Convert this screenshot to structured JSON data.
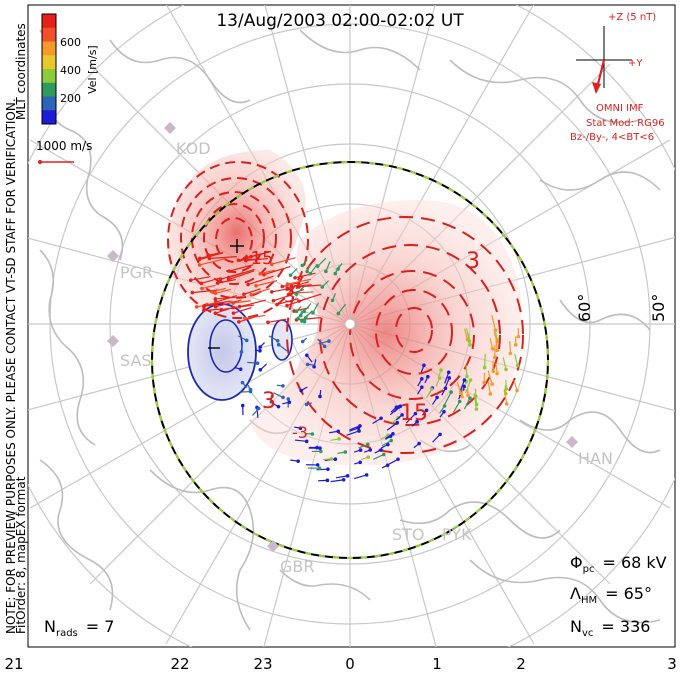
{
  "title": "13/Aug/2003 02:00-02:02 UT",
  "side_note": "NOTE: FOR PREVIEW PURPOSES ONLY. PLEASE CONTACT VT-SD STAFF FOR VERIFICATION.",
  "fit_note": "FitOrder: 8, mapEX format",
  "coords": "MLT coordinates",
  "colorbar": {
    "label": "Vel [m/s]",
    "ticks": [
      "600",
      "400",
      "200"
    ],
    "colors": [
      "#e8201a",
      "#f0502a",
      "#f39a2a",
      "#e8c62c",
      "#8ccc3a",
      "#2f9a5e",
      "#2c64b8",
      "#1c1cd8"
    ]
  },
  "ref_vector": {
    "label": "1000 m/s",
    "color": "#e02020"
  },
  "imf": {
    "z_label": "+Z (5 nT)",
    "y_label": "+Y",
    "source": "OMNI IMF",
    "model": "Stat Mod: RG96",
    "condition": "Bz-/By-, 4<BT<6",
    "color": "#e02020"
  },
  "latitude_labels": [
    "60°",
    "50°"
  ],
  "stations": [
    "KOD",
    "PGR",
    "SAS",
    "GBR",
    "STO",
    "PYK",
    "HAN"
  ],
  "contour_labels": [
    "-15",
    "-3",
    "3",
    "15"
  ],
  "stats": {
    "phi_pc": {
      "symbol": "Φ",
      "sub": "pc",
      "value": "= 68 kV"
    },
    "lambda_hm": {
      "symbol": "Λ",
      "sub": "HM",
      "value": "= 65°"
    },
    "n_vc": {
      "symbol": "N",
      "sub": "vc",
      "value": "= 336"
    },
    "n_rads": {
      "symbol": "N",
      "sub": "rads",
      "value": "= 7"
    }
  },
  "mlt_ticks": [
    "21",
    "22",
    "23",
    "0",
    "1",
    "2",
    "3"
  ]
}
